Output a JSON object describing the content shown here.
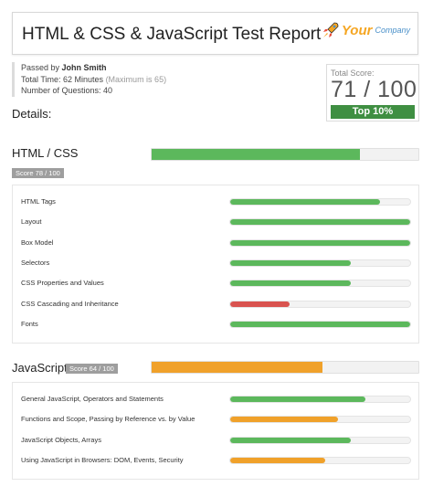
{
  "header": {
    "title": "HTML & CSS & JavaScript Test Report",
    "logo": {
      "icon": "rocket-icon",
      "word1": "Your",
      "word2": "Company"
    }
  },
  "meta": {
    "passed_by_label": "Passed by",
    "passed_by_name": "John Smith",
    "total_time_label": "Total Time: 62 Minutes",
    "total_time_max": "(Maximum is 65)",
    "questions": "Number of Questions: 40"
  },
  "details_label": "Details:",
  "score": {
    "label": "Total Score:",
    "value": "71 / 100",
    "badge": "Top 10%"
  },
  "sections": [
    {
      "title": "HTML / CSS",
      "score_label": "Score 78 / 100",
      "score": 78,
      "color": "#5cb85c",
      "items": [
        {
          "label": "HTML Tags",
          "value": 83,
          "color": "#5cb85c"
        },
        {
          "label": "Layout",
          "value": 100,
          "color": "#5cb85c"
        },
        {
          "label": "Box Model",
          "value": 100,
          "color": "#5cb85c"
        },
        {
          "label": "Selectors",
          "value": 67,
          "color": "#5cb85c"
        },
        {
          "label": "CSS Properties and Values",
          "value": 67,
          "color": "#5cb85c"
        },
        {
          "label": "CSS Cascading and Inheritance",
          "value": 33,
          "color": "#d9534f"
        },
        {
          "label": "Fonts",
          "value": 100,
          "color": "#5cb85c"
        }
      ]
    },
    {
      "title": "JavaScript",
      "score_label": "Score 64 / 100",
      "score": 64,
      "color": "#f0a12a",
      "items": [
        {
          "label": "General JavaScript, Operators and Statements",
          "value": 75,
          "color": "#5cb85c"
        },
        {
          "label": "Functions and Scope, Passing by Reference vs. by Value",
          "value": 60,
          "color": "#f0a12a"
        },
        {
          "label": "JavaScript Objects, Arrays",
          "value": 67,
          "color": "#5cb85c"
        },
        {
          "label": "Using JavaScript in Browsers: DOM, Events, Security",
          "value": 53,
          "color": "#f0a12a"
        }
      ]
    }
  ]
}
